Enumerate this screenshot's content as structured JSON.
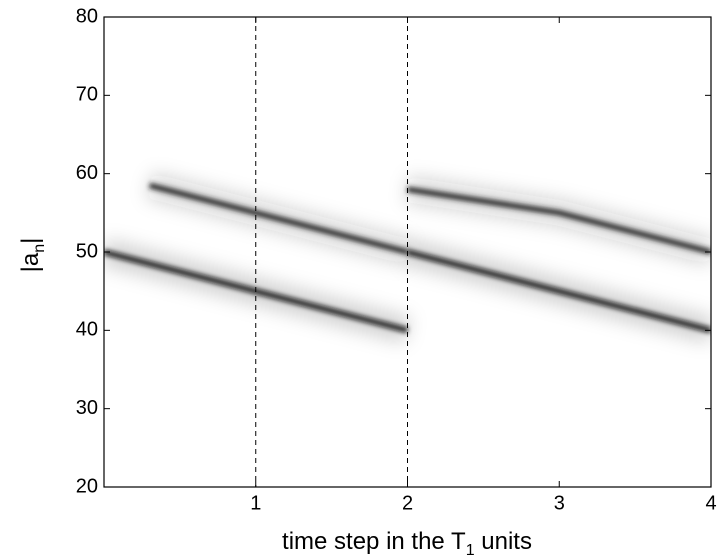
{
  "chart_data": {
    "type": "line",
    "x_label": {
      "text": "time step in the T",
      "sub": "1",
      "tail": " units"
    },
    "y_label": {
      "open": "|a",
      "sub": "n",
      "close": "|"
    },
    "xlim": [
      0,
      4
    ],
    "ylim": [
      20,
      80
    ],
    "xticks": [
      1,
      2,
      3,
      4
    ],
    "yticks": [
      20,
      30,
      40,
      50,
      60,
      70,
      80
    ],
    "vlines": [
      1,
      2
    ],
    "series": [
      {
        "color": "#111111",
        "x": [
          0,
          1,
          2
        ],
        "values": [
          50,
          45,
          40
        ]
      },
      {
        "color": "#222222",
        "x": [
          0.3,
          1,
          2
        ],
        "values": [
          58.5,
          55,
          50
        ]
      },
      {
        "color": "#111111",
        "x": [
          2,
          3,
          4
        ],
        "values": [
          50,
          45,
          40
        ]
      },
      {
        "color": "#222222",
        "x": [
          2,
          3,
          4
        ],
        "values": [
          58,
          55,
          50
        ]
      }
    ]
  }
}
